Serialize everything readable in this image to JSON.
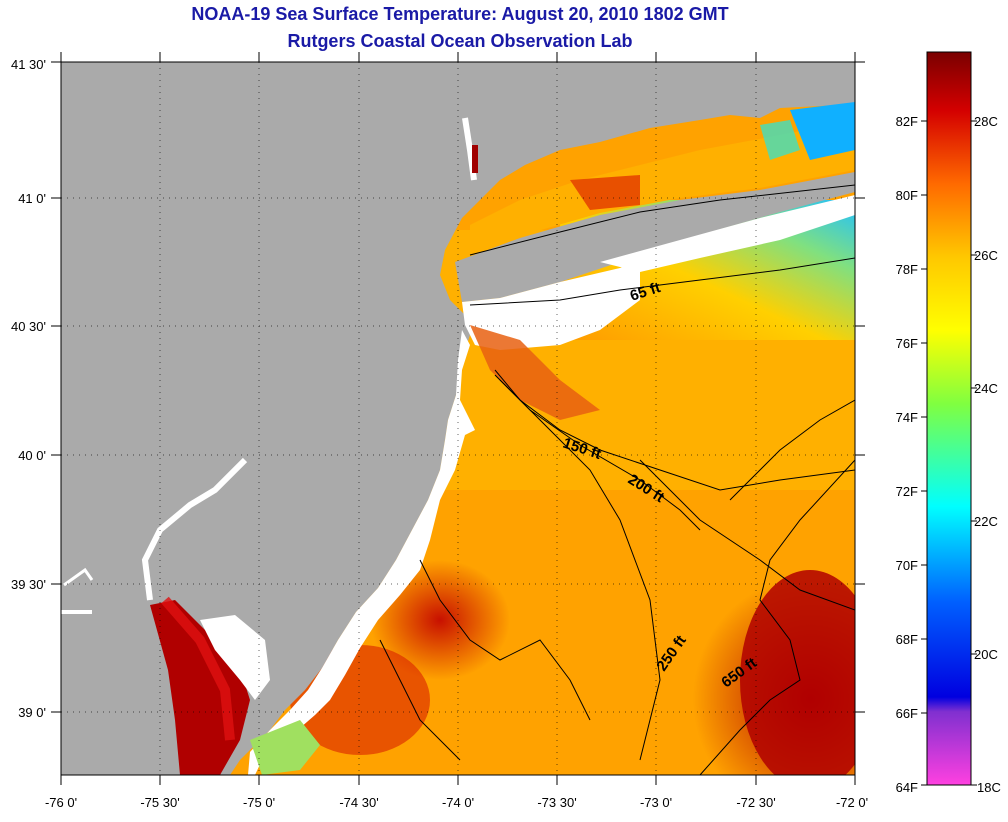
{
  "title_line1": "NOAA-19 Sea Surface Temperature:  August 20, 2010 1802 GMT",
  "title_line2": "Rutgers Coastal Ocean Observation Lab",
  "lat_labels": [
    "41 30'",
    "41 0'",
    "40 30'",
    "40 0'",
    "39 30'",
    "39 0'"
  ],
  "lon_labels": [
    "-76 0'",
    "-75 30'",
    "-75 0'",
    "-74 30'",
    "-74 0'",
    "-73 30'",
    "-73 0'",
    "-72 30'",
    "-72 0'"
  ],
  "colorbar": {
    "fahrenheit_labels": [
      "82F",
      "80F",
      "78F",
      "76F",
      "74F",
      "72F",
      "70F",
      "68F",
      "66F",
      "64F"
    ],
    "celsius_labels": [
      "28C",
      "26C",
      "24C",
      "22C",
      "20C",
      "18C"
    ],
    "colors": [
      "#7a0000",
      "#d40000",
      "#ff6a00",
      "#ffc800",
      "#ffff00",
      "#80ff40",
      "#00ffff",
      "#0060ff",
      "#0000e0",
      "#8030d0",
      "#ff40e0"
    ]
  },
  "isobath_labels": [
    "65 ft",
    "150 ft",
    "200 ft",
    "250 ft",
    "650 ft"
  ],
  "colors": {
    "land": "#aaaaaa",
    "no_data": "#ffffff",
    "title": "#1a1aa6"
  }
}
